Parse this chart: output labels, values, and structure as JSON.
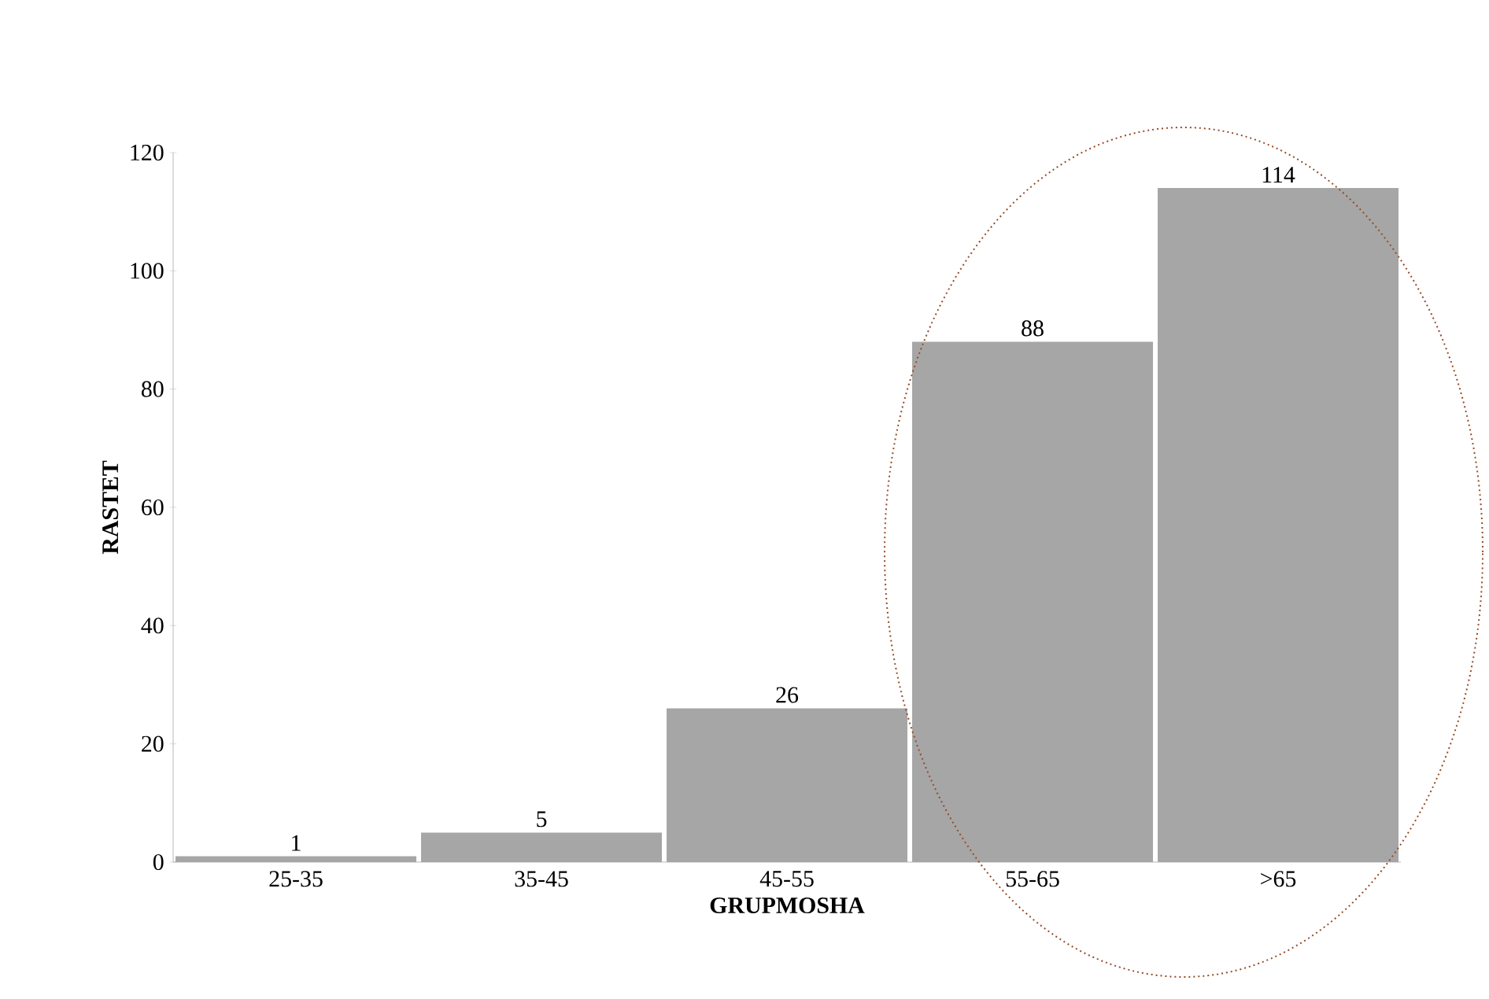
{
  "chart_data": {
    "type": "bar",
    "xlabel": "GRUPMOSHA",
    "ylabel": "RASTET",
    "categories": [
      "25-35",
      "35-45",
      "45-55",
      "55-65",
      ">65"
    ],
    "values": [
      1,
      5,
      26,
      88,
      114
    ],
    "color": "#a6a6a6",
    "ylim": [
      0,
      120
    ],
    "yticks": [
      0,
      20,
      40,
      60,
      80,
      100,
      120
    ],
    "data_labels": true
  }
}
